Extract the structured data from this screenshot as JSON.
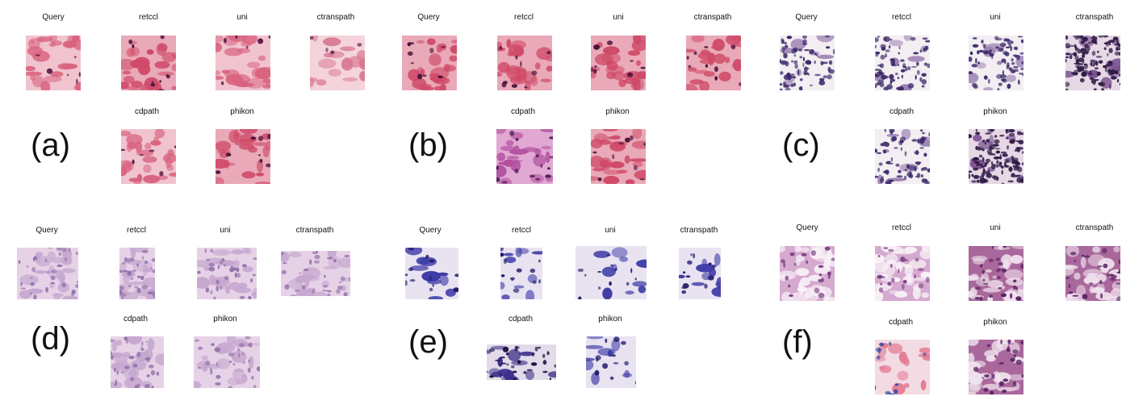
{
  "panels": [
    {
      "label": "(a)",
      "tiles": [
        {
          "caption": "Query",
          "style": "he-pink"
        },
        {
          "caption": "retccl",
          "style": "he-red"
        },
        {
          "caption": "uni",
          "style": "he-pink"
        },
        {
          "caption": "ctranspath",
          "style": "he-light"
        },
        {
          "caption": "cdpath",
          "style": "he-pink"
        },
        {
          "caption": "phikon",
          "style": "he-red"
        }
      ]
    },
    {
      "label": "(b)",
      "tiles": [
        {
          "caption": "Query",
          "style": "he-red"
        },
        {
          "caption": "retccl",
          "style": "he-red"
        },
        {
          "caption": "uni",
          "style": "he-red"
        },
        {
          "caption": "ctranspath",
          "style": "he-red"
        },
        {
          "caption": "cdpath",
          "style": "he-purple"
        },
        {
          "caption": "phikon",
          "style": "he-red"
        }
      ]
    },
    {
      "label": "(c)",
      "tiles": [
        {
          "caption": "Query",
          "style": "sparse-blue"
        },
        {
          "caption": "retccl",
          "style": "sparse-blue"
        },
        {
          "caption": "uni",
          "style": "sparse-blue"
        },
        {
          "caption": "ctranspath",
          "style": "dense-dark"
        },
        {
          "caption": "cdpath",
          "style": "sparse-blue"
        },
        {
          "caption": "phikon",
          "style": "dense-dark"
        }
      ]
    },
    {
      "label": "(d)",
      "tiles": [
        {
          "caption": "Query",
          "style": "pale-lilac"
        },
        {
          "caption": "retccl",
          "style": "pale-lilac"
        },
        {
          "caption": "uni",
          "style": "pale-lilac"
        },
        {
          "caption": "ctranspath",
          "style": "pale-lilac"
        },
        {
          "caption": "cdpath",
          "style": "pale-lilac"
        },
        {
          "caption": "phikon",
          "style": "pale-lilac"
        }
      ]
    },
    {
      "label": "(e)",
      "tiles": [
        {
          "caption": "Query",
          "style": "cyto-blue"
        },
        {
          "caption": "retccl",
          "style": "cyto-blue"
        },
        {
          "caption": "uni",
          "style": "cyto-blue"
        },
        {
          "caption": "ctranspath",
          "style": "cyto-blue"
        },
        {
          "caption": "cdpath",
          "style": "cyto-dark"
        },
        {
          "caption": "phikon",
          "style": "cyto-blue"
        }
      ]
    },
    {
      "label": "(f)",
      "tiles": [
        {
          "caption": "Query",
          "style": "fat-lilac"
        },
        {
          "caption": "retccl",
          "style": "fat-lilac"
        },
        {
          "caption": "uni",
          "style": "fat-purple"
        },
        {
          "caption": "ctranspath",
          "style": "fat-purple"
        },
        {
          "caption": "cdpath",
          "style": "fat-pink"
        },
        {
          "caption": "phikon",
          "style": "fat-purple"
        }
      ]
    }
  ]
}
